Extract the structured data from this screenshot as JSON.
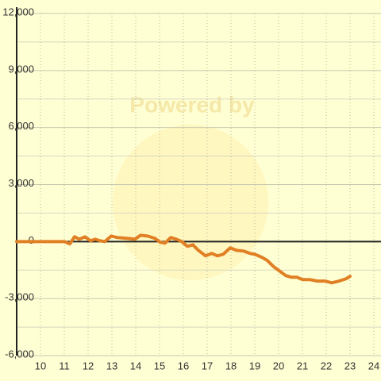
{
  "chart_data": {
    "type": "line",
    "watermark": "Powered by",
    "x": [
      9,
      11,
      11.23,
      11.43,
      11.63,
      11.87,
      12.1,
      12.3,
      12.5,
      12.7,
      12.97,
      13.23,
      13.63,
      13.97,
      14.2,
      14.5,
      14.8,
      15.03,
      15.23,
      15.47,
      15.7,
      15.93,
      16.17,
      16.4,
      16.63,
      16.93,
      17.2,
      17.43,
      17.67,
      17.97,
      18.23,
      18.53,
      18.8,
      19.0,
      19.3,
      19.53,
      19.8,
      20.03,
      20.3,
      20.53,
      20.77,
      21.0,
      21.3,
      21.63,
      21.97,
      22.23,
      22.53,
      22.83,
      23.0
    ],
    "series": [
      {
        "color": "#e07f24",
        "values": [
          0,
          0,
          -125,
          250,
          125,
          250,
          40,
          125,
          40,
          0,
          290,
          210,
          170,
          125,
          330,
          290,
          170,
          -40,
          -80,
          210,
          125,
          0,
          -250,
          -170,
          -460,
          -750,
          -625,
          -750,
          -670,
          -330,
          -460,
          -500,
          -625,
          -670,
          -830,
          -1000,
          -1330,
          -1540,
          -1790,
          -1875,
          -1875,
          -2000,
          -2000,
          -2080,
          -2080,
          -2170,
          -2080,
          -1960,
          -1830
        ]
      }
    ],
    "xlim": [
      9,
      24.3
    ],
    "xticks": [
      10,
      11,
      12,
      13,
      14,
      15,
      16,
      17,
      18,
      19,
      20,
      21,
      22,
      23,
      24
    ],
    "ylim": [
      -6000,
      12000
    ],
    "yticks": [
      {
        "value": -6000,
        "label": "-6,000"
      },
      {
        "value": -3000,
        "label": "-3,000"
      },
      0,
      {
        "value": 3000,
        "label": "3,000"
      },
      {
        "value": 6000,
        "label": "6,000"
      },
      {
        "value": 9000,
        "label": "9,000"
      },
      {
        "value": 12000,
        "label": "12,000"
      }
    ],
    "grid": true
  }
}
